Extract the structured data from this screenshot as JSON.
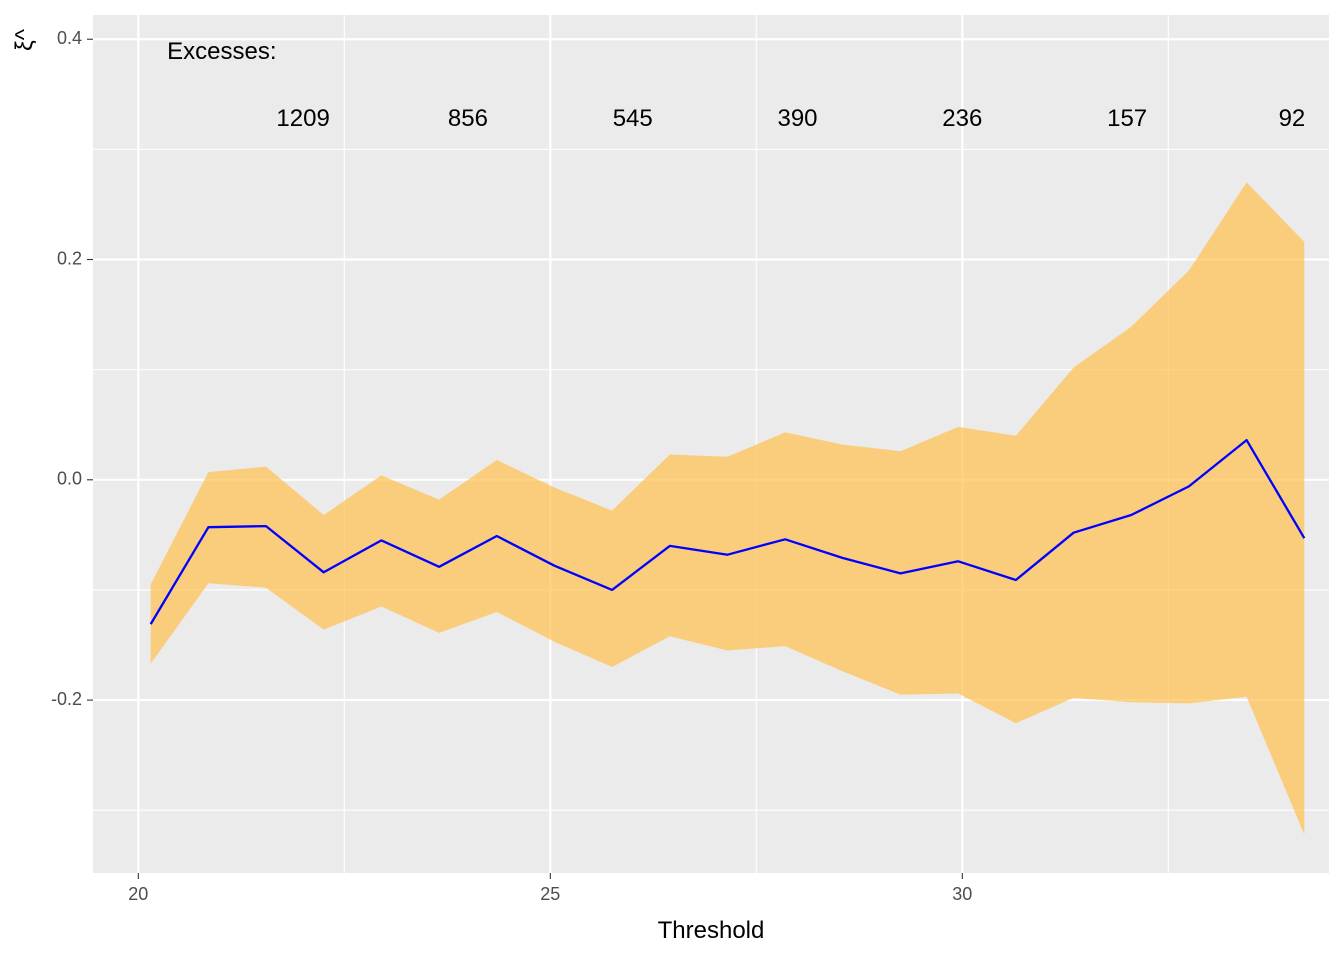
{
  "chart_data": {
    "type": "line",
    "xlabel": "Threshold",
    "ylabel": "ξ^",
    "xlim": [
      19.45,
      34.45
    ],
    "ylim": [
      -0.357,
      0.422
    ],
    "x_ticks": [
      20,
      25,
      30
    ],
    "x_tick_labels": [
      "20",
      "25",
      "30"
    ],
    "y_ticks": [
      -0.2,
      0.0,
      0.2,
      0.4
    ],
    "y_tick_labels": [
      "-0.2",
      "0.0",
      "0.2",
      "0.4"
    ],
    "x_minor_ticks": [
      22.5,
      27.5,
      32.5
    ],
    "y_minor_ticks": [
      -0.3,
      -0.1,
      0.1,
      0.3
    ],
    "grid": true,
    "legend": "none",
    "series": [
      {
        "color": "#0000ff",
        "x": [
          20.15,
          20.85,
          21.55,
          22.25,
          22.95,
          23.65,
          24.35,
          25.05,
          25.75,
          26.45,
          27.15,
          27.85,
          28.55,
          29.25,
          29.95,
          30.65,
          31.35,
          32.05,
          32.75,
          33.45,
          34.15
        ],
        "y": [
          -0.131,
          -0.043,
          -0.042,
          -0.084,
          -0.055,
          -0.079,
          -0.051,
          -0.078,
          -0.1,
          -0.06,
          -0.068,
          -0.054,
          -0.071,
          -0.085,
          -0.074,
          -0.091,
          -0.048,
          -0.032,
          -0.006,
          0.036,
          -0.053
        ],
        "lower": [
          -0.167,
          -0.094,
          -0.098,
          -0.136,
          -0.115,
          -0.139,
          -0.12,
          -0.147,
          -0.17,
          -0.142,
          -0.155,
          -0.151,
          -0.174,
          -0.195,
          -0.194,
          -0.221,
          -0.198,
          -0.202,
          -0.203,
          -0.197,
          -0.322
        ],
        "upper": [
          -0.095,
          0.007,
          0.012,
          -0.032,
          0.004,
          -0.018,
          0.018,
          -0.007,
          -0.028,
          0.023,
          0.021,
          0.043,
          0.032,
          0.026,
          0.048,
          0.04,
          0.102,
          0.139,
          0.19,
          0.27,
          0.216
        ],
        "band_color": "#ffc04d"
      }
    ],
    "annotations": {
      "header": "Excesses:",
      "counts": [
        {
          "x": 22.0,
          "label": "1209"
        },
        {
          "x": 24.0,
          "label": "856"
        },
        {
          "x": 26.0,
          "label": "545"
        },
        {
          "x": 28.0,
          "label": "390"
        },
        {
          "x": 30.0,
          "label": "236"
        },
        {
          "x": 32.0,
          "label": "157"
        },
        {
          "x": 34.0,
          "label": "92"
        }
      ],
      "header_x": 20.35,
      "header_y": 0.388,
      "counts_y": 0.327
    },
    "colors": {
      "panel_background": "#ebebeb",
      "grid_major": "#ffffff",
      "grid_minor": "#ffffff",
      "tick_mark": "#333333"
    }
  }
}
